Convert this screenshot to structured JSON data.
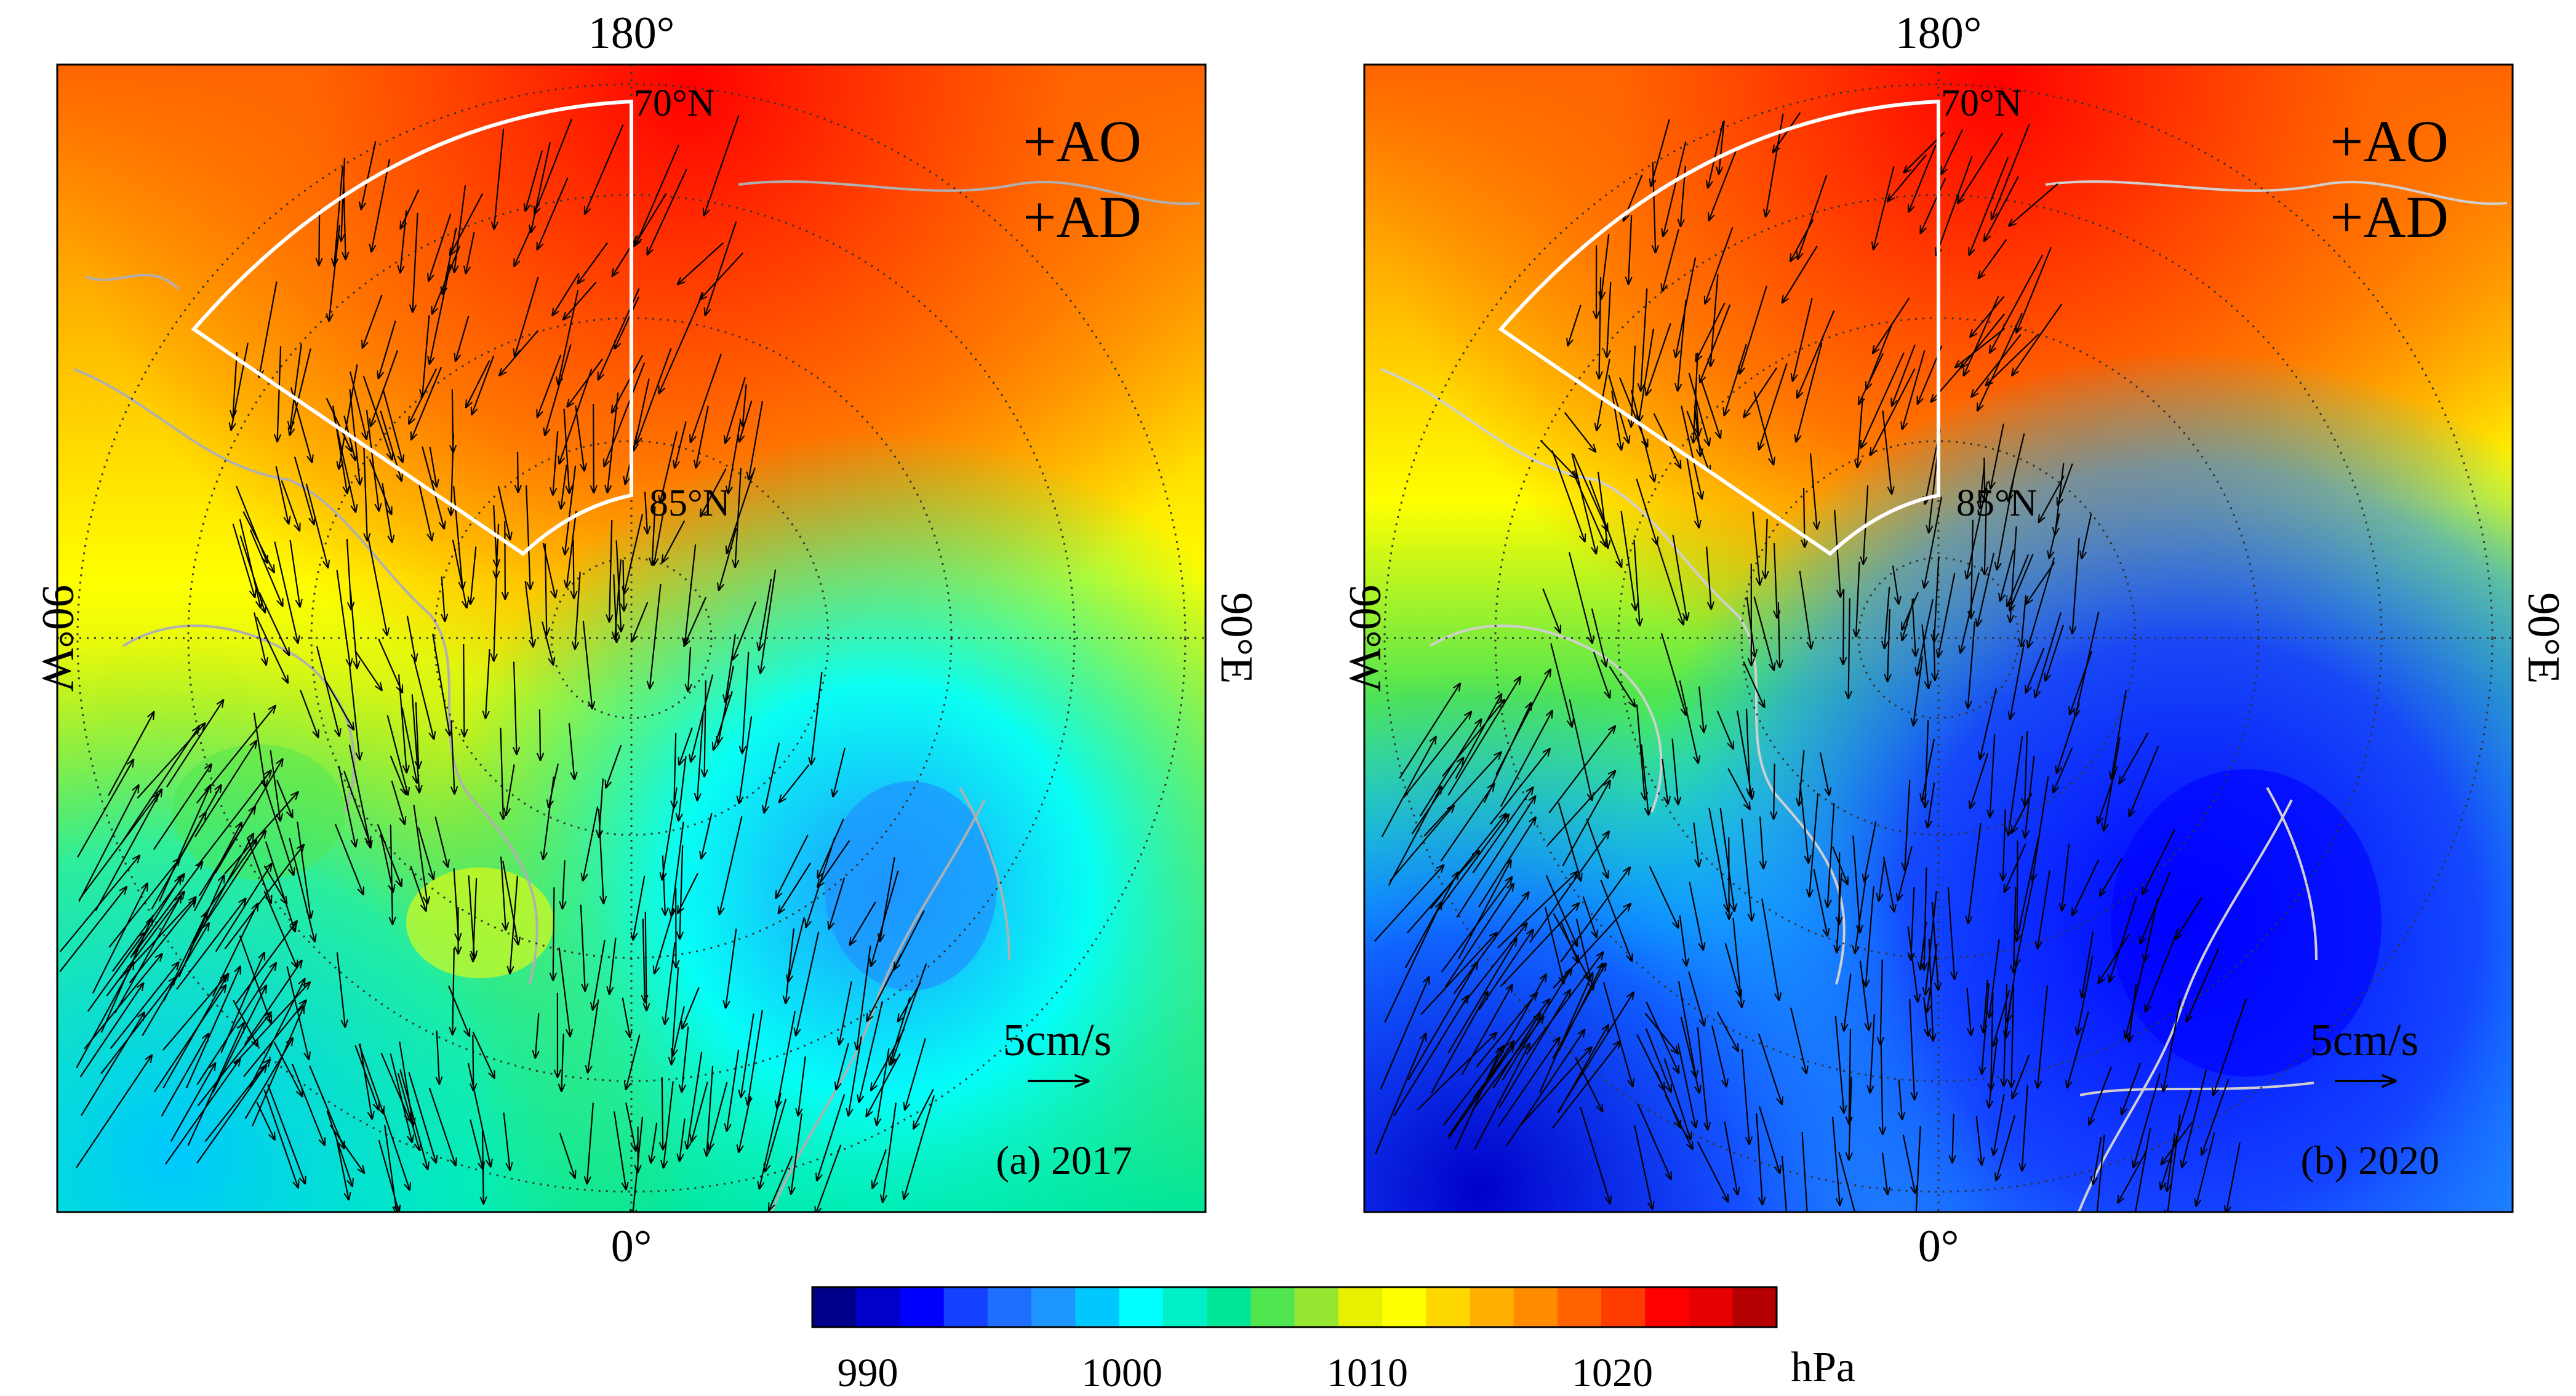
{
  "figure": {
    "panels": [
      {
        "id": "a",
        "caption": "(a) 2017",
        "index_line1": "+AO",
        "index_line2": "+AD",
        "label_top": "180°",
        "label_bottom": "0°",
        "label_left": "90°W",
        "label_right": "90°E",
        "lat_label_outer": "70°N",
        "lat_label_inner": "85°N",
        "scale_label": "5cm/s"
      },
      {
        "id": "b",
        "caption": "(b) 2020",
        "index_line1": "+AO",
        "index_line2": "+AD",
        "label_top": "180°",
        "label_bottom": "0°",
        "label_left": "90°W",
        "label_right": "90°E",
        "lat_label_outer": "70°N",
        "lat_label_inner": "85°N",
        "scale_label": "5cm/s"
      }
    ],
    "colorbar": {
      "ticks": [
        "990",
        "1000",
        "1010",
        "1020"
      ],
      "unit": "hPa",
      "colors": [
        "#00008b",
        "#0000c8",
        "#0000ff",
        "#1440ff",
        "#1e6eff",
        "#1e96ff",
        "#00c8ff",
        "#00ffff",
        "#00f0c8",
        "#00e699",
        "#50e650",
        "#96e632",
        "#e6f000",
        "#ffff00",
        "#ffd700",
        "#ffaf00",
        "#ff8c00",
        "#ff6400",
        "#ff3c00",
        "#ff0000",
        "#e60000",
        "#b40000"
      ]
    }
  }
}
